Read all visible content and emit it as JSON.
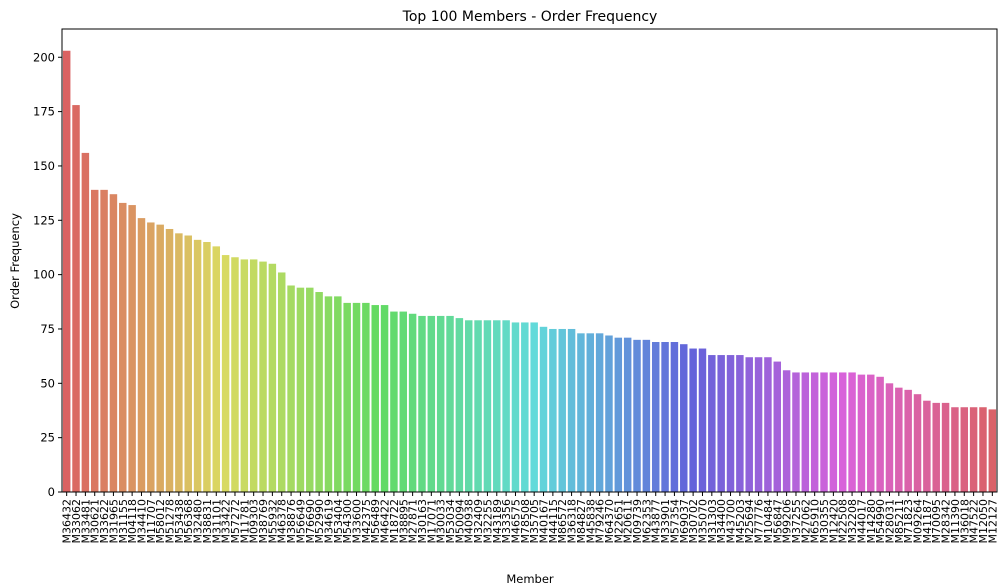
{
  "chart_data": {
    "type": "bar",
    "title": "Top 100 Members - Order Frequency",
    "xlabel": "Member",
    "ylabel": "Order Frequency",
    "ylim": [
      0,
      213
    ],
    "yticks": [
      0,
      25,
      50,
      75,
      100,
      125,
      150,
      175,
      200
    ],
    "grid": false,
    "legend": "none",
    "categories": [
      "M36432",
      "M33062",
      "M33481",
      "M30621",
      "M33622",
      "M31965",
      "M31155",
      "M04118",
      "M34410",
      "M11707",
      "M58012",
      "M51278",
      "M53438",
      "M56368",
      "M32480",
      "M38831",
      "M31101",
      "M33422",
      "M57272",
      "M11781",
      "M09303",
      "M38769",
      "M55932",
      "M46378",
      "M38876",
      "M56649",
      "M76690",
      "M52990",
      "M34619",
      "M53404",
      "M54300",
      "M33600",
      "M42375",
      "M56489",
      "M46422",
      "M18722",
      "M38895",
      "M27871",
      "M30163",
      "M17071",
      "M30033",
      "M53034",
      "M50094",
      "M40938",
      "M32409",
      "M32255",
      "M43189",
      "M33356",
      "M46575",
      "M78508",
      "M35705",
      "M40167",
      "M44115",
      "M86572",
      "M36318",
      "M84827",
      "M45838",
      "M79246",
      "M64370",
      "M22651",
      "M20611",
      "M09739",
      "M62353",
      "M43877",
      "M33901",
      "M57354",
      "M69037",
      "M30702",
      "M35070",
      "M31303",
      "M34400",
      "M43700",
      "M45203",
      "M25694",
      "M77776",
      "M10484",
      "M56847",
      "M99206",
      "M37255",
      "M27062",
      "M65910",
      "M30355",
      "M12420",
      "M22508",
      "M32208",
      "M44017",
      "M14280",
      "M54990",
      "M28031",
      "M85211",
      "M71823",
      "M09264",
      "M41187",
      "M70095",
      "M28342",
      "M11390",
      "M36018",
      "M47522",
      "M12050",
      "M12127"
    ],
    "values": [
      203,
      178,
      156,
      139,
      139,
      137,
      133,
      132,
      126,
      124,
      123,
      121,
      119,
      118,
      116,
      115,
      113,
      109,
      108,
      107,
      107,
      106,
      105,
      101,
      95,
      94,
      94,
      92,
      90,
      90,
      87,
      87,
      87,
      86,
      86,
      83,
      83,
      82,
      81,
      81,
      81,
      81,
      80,
      79,
      79,
      79,
      79,
      79,
      78,
      78,
      78,
      76,
      75,
      75,
      75,
      73,
      73,
      73,
      72,
      71,
      71,
      70,
      70,
      69,
      69,
      69,
      68,
      66,
      66,
      63,
      63,
      63,
      63,
      62,
      62,
      62,
      60,
      56,
      55,
      55,
      55,
      55,
      55,
      55,
      55,
      54,
      54,
      53,
      50,
      48,
      47,
      45,
      42,
      41,
      41,
      39,
      39,
      39,
      39,
      38
    ],
    "visible_xtick_labels": [
      "M36432",
      "M33062",
      "M33481",
      "M30621",
      "M33622",
      "M31965",
      "M31155",
      "M04118",
      "M34410",
      "M11707",
      "M58012",
      "M51278",
      "M53438",
      "M56368",
      "M32480",
      "M38831",
      "M31101",
      "M33422",
      "M57272",
      "M11781",
      "M09303",
      "M38769",
      "M55932",
      "M46378",
      "M38876",
      "M56649",
      "M76690",
      "M52990",
      "M34619",
      "M53404",
      "M54300",
      "M33600",
      "M42375",
      "M56489",
      "M46422",
      "M18722",
      "M38895",
      "M27871",
      "M30163",
      "M17071",
      "M30033",
      "M53034",
      "M50094",
      "M40938",
      "M32409",
      "M32255",
      "M43189",
      "M33356",
      "M46575",
      "M78508",
      "M35705",
      "M40167",
      "M44115",
      "M86572",
      "M36318",
      "M84827",
      "M45838",
      "M79246",
      "M64370",
      "M22651",
      "M20611",
      "M09739",
      "M62353",
      "M43877",
      "M33901",
      "M57354",
      "M69037",
      "M30702",
      "M35070",
      "M31303",
      "M34400",
      "M43700",
      "M45203",
      "M25694",
      "M77776",
      "M10484",
      "M56847",
      "M99206",
      "M37255",
      "M27062",
      "M65910",
      "M30355",
      "M12420",
      "M22508",
      "M32208",
      "M44017",
      "M14280",
      "M54990",
      "M28031",
      "M85211",
      "M71823",
      "M09264",
      "M41187",
      "M70095",
      "M28342",
      "M11390",
      "M36018",
      "M47522",
      "M12050",
      "M12127"
    ]
  }
}
